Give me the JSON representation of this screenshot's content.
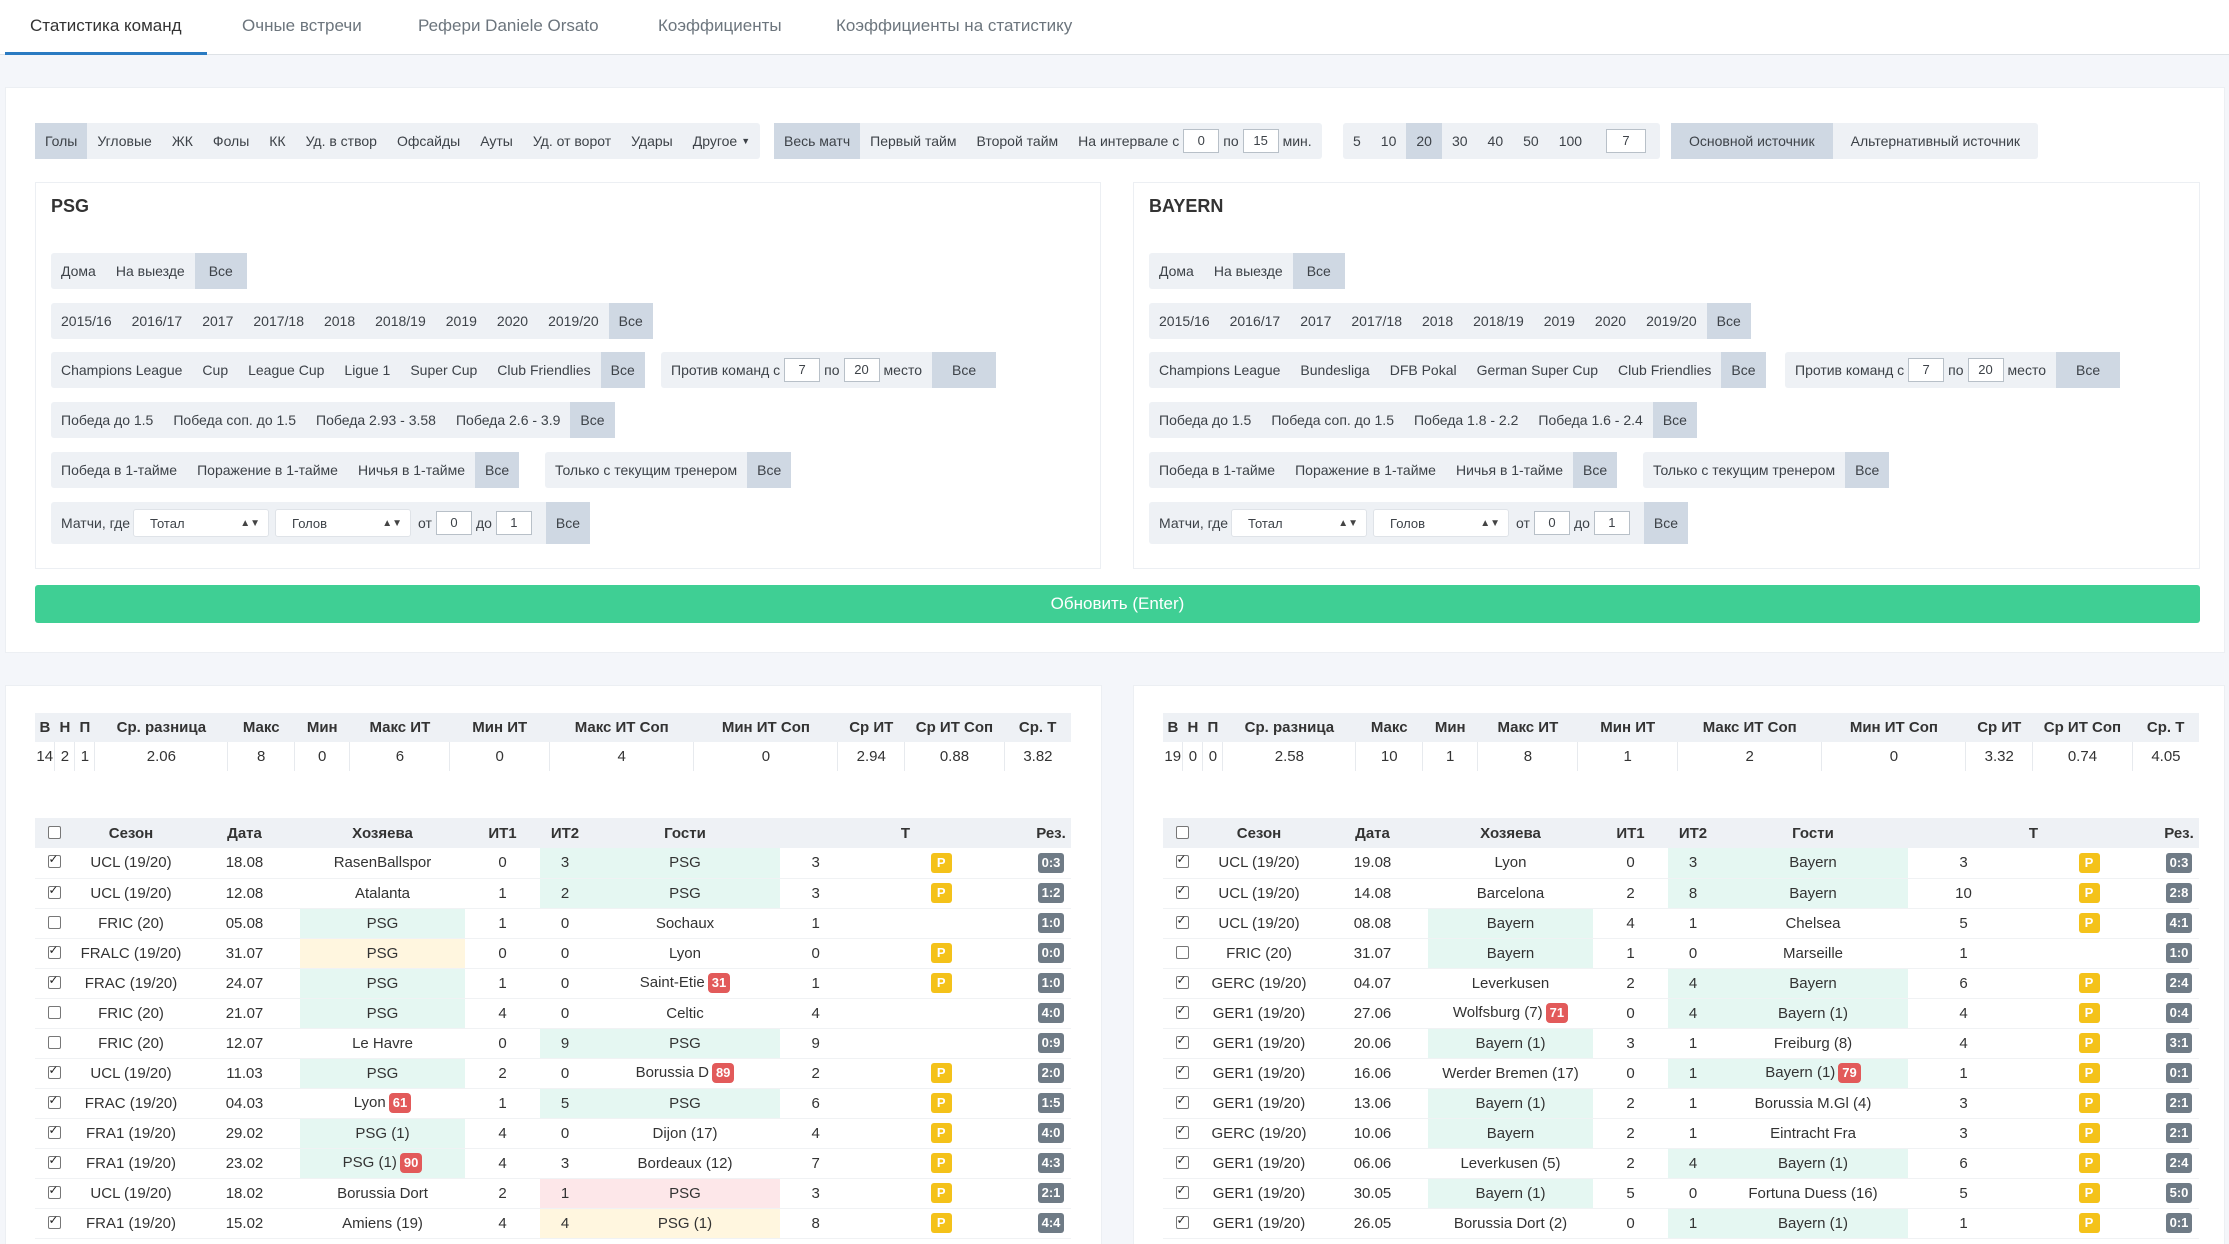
{
  "tabs": [
    "Статистика команд",
    "Очные встречи",
    "Рефери Daniele Orsato",
    "Коэффициенты",
    "Коэффициенты на статистику"
  ],
  "filters": {
    "stats": [
      "Голы",
      "Угловые",
      "ЖК",
      "Фолы",
      "КК",
      "Уд. в створ",
      "Офсайды",
      "Ауты",
      "Уд. от ворот",
      "Удары",
      "Другое"
    ],
    "periods": [
      "Весь матч",
      "Первый тайм",
      "Второй тайм"
    ],
    "interval": {
      "label": "На интервале с",
      "from": "0",
      "to_label": "по",
      "to": "15",
      "unit": "мин."
    },
    "counts": [
      "5",
      "10",
      "20",
      "30",
      "40",
      "50",
      "100"
    ],
    "custom_count": "7",
    "sources": [
      "Основной источник",
      "Альтернативный источник"
    ]
  },
  "teams": [
    {
      "name": "PSG",
      "venue": [
        "Дома",
        "На выезде",
        "Все"
      ],
      "seasons": [
        "2015/16",
        "2016/17",
        "2017",
        "2017/18",
        "2018",
        "2018/19",
        "2019",
        "2020",
        "2019/20",
        "Все"
      ],
      "tournaments": [
        "Champions League",
        "Cup",
        "League Cup",
        "Ligue 1",
        "Super Cup",
        "Club Friendlies",
        "Все"
      ],
      "odds": [
        "Победа до 1.5",
        "Победа соп. до 1.5",
        "Победа 2.93 - 3.58",
        "Победа 2.6 - 3.9",
        "Все"
      ],
      "half": [
        "Победа в 1-тайме",
        "Поражение в 1-тайме",
        "Ничья в 1-тайме",
        "Все"
      ]
    },
    {
      "name": "BAYERN",
      "venue": [
        "Дома",
        "На выезде",
        "Все"
      ],
      "seasons": [
        "2015/16",
        "2016/17",
        "2017",
        "2017/18",
        "2018",
        "2018/19",
        "2019",
        "2020",
        "2019/20",
        "Все"
      ],
      "tournaments": [
        "Champions League",
        "Bundesliga",
        "DFB Pokal",
        "German Super Cup",
        "Club Friendlies",
        "Все"
      ],
      "odds": [
        "Победа до 1.5",
        "Победа соп. до 1.5",
        "Победа 1.8 - 2.2",
        "Победа 1.6 - 2.4",
        "Все"
      ],
      "half": [
        "Победа в 1-тайме",
        "Поражение в 1-тайме",
        "Ничья в 1-тайме",
        "Все"
      ]
    }
  ],
  "common": {
    "against": {
      "label": "Против команд с",
      "from": "7",
      "mid": "по",
      "to": "20",
      "suffix": "место",
      "all": "Все"
    },
    "coach": {
      "label": "Только с текущим тренером",
      "all": "Все"
    },
    "matches": {
      "label": "Матчи, где",
      "sel1": "Тотал",
      "sel2": "Голов",
      "from_label": "от",
      "from": "0",
      "to_label": "до",
      "to": "1",
      "all": "Все"
    }
  },
  "update_button": "Обновить (Enter)",
  "summary_headers": [
    "В",
    "Н",
    "П",
    "Ср. разница",
    "Макс",
    "Мин",
    "Макс ИТ",
    "Мин ИТ",
    "Макс ИТ Соп",
    "Мин ИТ Соп",
    "Ср ИТ",
    "Ср ИТ Соп",
    "Ср. Т"
  ],
  "summaries": [
    [
      "14",
      "2",
      "1",
      "2.06",
      "8",
      "0",
      "6",
      "0",
      "4",
      "0",
      "2.94",
      "0.88",
      "3.82"
    ],
    [
      "19",
      "0",
      "0",
      "2.58",
      "10",
      "1",
      "8",
      "1",
      "2",
      "0",
      "3.32",
      "0.74",
      "4.05"
    ]
  ],
  "result_headers": [
    "Сезон",
    "Дата",
    "Хозяева",
    "ИТ1",
    "ИТ2",
    "Гости",
    "Т",
    "Рез."
  ],
  "matches": [
    [
      {
        "season": "UCL (19/20)",
        "date": "18.08",
        "home": "RasenBallspor",
        "it1": "0",
        "it2": "3",
        "away": "PSG",
        "t": "3",
        "p": "P",
        "res": "0:3",
        "checked": true
      },
      {
        "season": "UCL (19/20)",
        "date": "12.08",
        "home": "Atalanta",
        "it1": "1",
        "it2": "2",
        "away": "PSG",
        "t": "3",
        "p": "P",
        "res": "1:2",
        "checked": true
      },
      {
        "season": "FRIC (20)",
        "date": "05.08",
        "home": "PSG",
        "it1": "1",
        "it2": "0",
        "away": "Sochaux",
        "t": "1",
        "p": "",
        "res": "1:0",
        "checked": false
      },
      {
        "season": "FRALC (19/20)",
        "date": "31.07",
        "home": "PSG",
        "it1": "0",
        "it2": "0",
        "away": "Lyon",
        "t": "0",
        "p": "P",
        "res": "0:0",
        "checked": true
      },
      {
        "season": "FRAC (19/20)",
        "date": "24.07",
        "home": "PSG",
        "it1": "1",
        "it2": "0",
        "away": "Saint-Etie",
        "away_badge": "31",
        "t": "1",
        "p": "P",
        "res": "1:0",
        "checked": true
      },
      {
        "season": "FRIC (20)",
        "date": "21.07",
        "home": "PSG",
        "it1": "4",
        "it2": "0",
        "away": "Celtic",
        "t": "4",
        "p": "",
        "res": "4:0",
        "checked": false
      },
      {
        "season": "FRIC (20)",
        "date": "12.07",
        "home": "Le Havre",
        "it1": "0",
        "it2": "9",
        "away": "PSG",
        "t": "9",
        "p": "",
        "res": "0:9",
        "checked": false
      },
      {
        "season": "UCL (19/20)",
        "date": "11.03",
        "home": "PSG",
        "it1": "2",
        "it2": "0",
        "away": "Borussia D",
        "away_badge": "89",
        "t": "2",
        "p": "P",
        "res": "2:0",
        "checked": true
      },
      {
        "season": "FRAC (19/20)",
        "date": "04.03",
        "home": "Lyon",
        "home_badge": "61",
        "it1": "1",
        "it2": "5",
        "away": "PSG",
        "t": "6",
        "p": "P",
        "res": "1:5",
        "checked": true
      },
      {
        "season": "FRA1 (19/20)",
        "date": "29.02",
        "home": "PSG (1)",
        "it1": "4",
        "it2": "0",
        "away": "Dijon (17)",
        "t": "4",
        "p": "P",
        "res": "4:0",
        "checked": true
      },
      {
        "season": "FRA1 (19/20)",
        "date": "23.02",
        "home": "PSG (1)",
        "home_badge": "90",
        "it1": "4",
        "it2": "3",
        "away": "Bordeaux (12)",
        "t": "7",
        "p": "P",
        "res": "4:3",
        "checked": true
      },
      {
        "season": "UCL (19/20)",
        "date": "18.02",
        "home": "Borussia Dort",
        "it1": "2",
        "it2": "1",
        "away": "PSG",
        "t": "3",
        "p": "P",
        "res": "2:1",
        "checked": true
      },
      {
        "season": "FRA1 (19/20)",
        "date": "15.02",
        "home": "Amiens (19)",
        "it1": "4",
        "it2": "4",
        "away": "PSG (1)",
        "t": "8",
        "p": "P",
        "res": "4:4",
        "checked": true
      }
    ],
    [
      {
        "season": "UCL (19/20)",
        "date": "19.08",
        "home": "Lyon",
        "it1": "0",
        "it2": "3",
        "away": "Bayern",
        "t": "3",
        "p": "P",
        "res": "0:3",
        "checked": true
      },
      {
        "season": "UCL (19/20)",
        "date": "14.08",
        "home": "Barcelona",
        "it1": "2",
        "it2": "8",
        "away": "Bayern",
        "t": "10",
        "p": "P",
        "res": "2:8",
        "checked": true
      },
      {
        "season": "UCL (19/20)",
        "date": "08.08",
        "home": "Bayern",
        "it1": "4",
        "it2": "1",
        "away": "Chelsea",
        "t": "5",
        "p": "P",
        "res": "4:1",
        "checked": true
      },
      {
        "season": "FRIC (20)",
        "date": "31.07",
        "home": "Bayern",
        "it1": "1",
        "it2": "0",
        "away": "Marseille",
        "t": "1",
        "p": "",
        "res": "1:0",
        "checked": false
      },
      {
        "season": "GERC (19/20)",
        "date": "04.07",
        "home": "Leverkusen",
        "it1": "2",
        "it2": "4",
        "away": "Bayern",
        "t": "6",
        "p": "P",
        "res": "2:4",
        "checked": true
      },
      {
        "season": "GER1 (19/20)",
        "date": "27.06",
        "home": "Wolfsburg (7)",
        "home_badge": "71",
        "it1": "0",
        "it2": "4",
        "away": "Bayern (1)",
        "t": "4",
        "p": "P",
        "res": "0:4",
        "checked": true
      },
      {
        "season": "GER1 (19/20)",
        "date": "20.06",
        "home": "Bayern (1)",
        "it1": "3",
        "it2": "1",
        "away": "Freiburg (8)",
        "t": "4",
        "p": "P",
        "res": "3:1",
        "checked": true
      },
      {
        "season": "GER1 (19/20)",
        "date": "16.06",
        "home": "Werder Bremen (17)",
        "it1": "0",
        "it2": "1",
        "away": "Bayern (1)",
        "away_badge": "79",
        "t": "1",
        "p": "P",
        "res": "0:1",
        "checked": true
      },
      {
        "season": "GER1 (19/20)",
        "date": "13.06",
        "home": "Bayern (1)",
        "it1": "2",
        "it2": "1",
        "away": "Borussia M.Gl (4)",
        "t": "3",
        "p": "P",
        "res": "2:1",
        "checked": true
      },
      {
        "season": "GERC (19/20)",
        "date": "10.06",
        "home": "Bayern",
        "it1": "2",
        "it2": "1",
        "away": "Eintracht Fra",
        "t": "3",
        "p": "P",
        "res": "2:1",
        "checked": true
      },
      {
        "season": "GER1 (19/20)",
        "date": "06.06",
        "home": "Leverkusen (5)",
        "it1": "2",
        "it2": "4",
        "away": "Bayern (1)",
        "t": "6",
        "p": "P",
        "res": "2:4",
        "checked": true
      },
      {
        "season": "GER1 (19/20)",
        "date": "30.05",
        "home": "Bayern (1)",
        "it1": "5",
        "it2": "0",
        "away": "Fortuna Duess (16)",
        "t": "5",
        "p": "P",
        "res": "5:0",
        "checked": true
      },
      {
        "season": "GER1 (19/20)",
        "date": "26.05",
        "home": "Borussia Dort (2)",
        "it1": "0",
        "it2": "1",
        "away": "Bayern (1)",
        "t": "1",
        "p": "P",
        "res": "0:1",
        "checked": true
      }
    ]
  ],
  "colors": {
    "accent": "#2a7bc2",
    "update": "#3fcf94",
    "highlight_green": "#e5f7f2",
    "highlight_yellow": "#fff6df",
    "highlight_red": "#fde7e9",
    "badge_red": "#e25a5a",
    "p_badge": "#f4c21a",
    "score_badge": "#6f7b86"
  }
}
